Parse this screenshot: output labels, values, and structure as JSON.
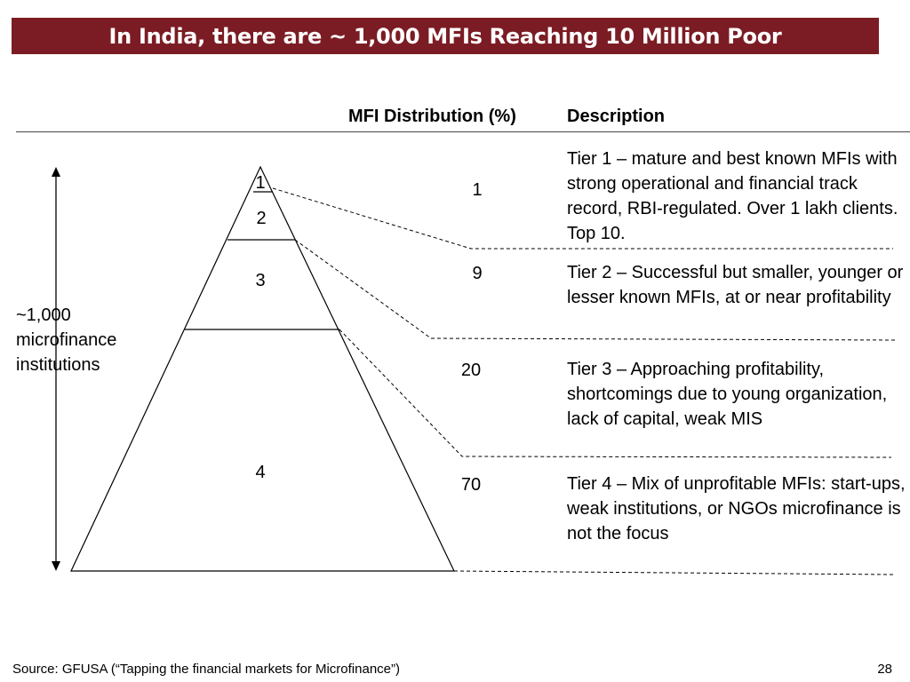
{
  "title": "In India, there are ~ 1,000 MFIs Reaching 10 Million Poor",
  "headers": {
    "distribution": "MFI Distribution (%)",
    "description": "Description"
  },
  "total_label": "~1,000 microfinance institutions",
  "pyramid_labels": [
    "1",
    "2",
    "3",
    "4"
  ],
  "tiers": [
    {
      "percent": "1",
      "description": "Tier 1 – mature and best known MFIs with strong operational and financial track record, RBI-regulated. Over 1 lakh clients. Top 10."
    },
    {
      "percent": "9",
      "description": "Tier 2 – Successful but smaller, younger or lesser known MFIs, at or near profitability"
    },
    {
      "percent": "20",
      "description": "Tier 3 – Approaching profitability, shortcomings due to young organization, lack of capital, weak MIS"
    },
    {
      "percent": "70",
      "description": "Tier 4 – Mix of unprofitable MFIs: start-ups, weak institutions, or NGOs microfinance is not the focus"
    }
  ],
  "source": "Source: GFUSA (“Tapping the financial markets for Microfinance”)",
  "page_number": "28",
  "colors": {
    "title_bar": "#7b1c24",
    "title_text": "#ffffff"
  }
}
